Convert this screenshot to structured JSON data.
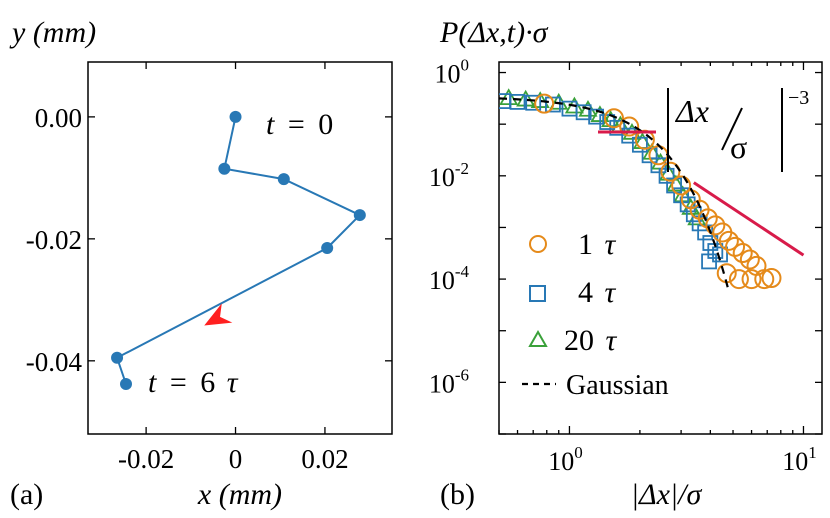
{
  "chart_data": [
    {
      "panel": "(a)",
      "type": "line",
      "ylabel": "y (mm)",
      "xlabel": "x (mm)",
      "xlim": [
        -0.033,
        0.035
      ],
      "ylim": [
        -0.052,
        0.009
      ],
      "xticks": [
        -0.02,
        0,
        0.02
      ],
      "xtick_labels": [
        "-0.02",
        "0",
        "0.02"
      ],
      "yticks": [
        0.0,
        -0.02,
        -0.04
      ],
      "ytick_labels": [
        "0.00",
        "-0.02",
        "-0.04"
      ],
      "series": [
        {
          "name": "trajectory",
          "color": "#2878b5",
          "points": [
            [
              0.0,
              0.0
            ],
            [
              -0.0025,
              -0.0085
            ],
            [
              0.0108,
              -0.0102
            ],
            [
              0.0278,
              -0.0161
            ],
            [
              0.0205,
              -0.0215
            ],
            [
              -0.0265,
              -0.0395
            ],
            [
              -0.0245,
              -0.0438
            ]
          ]
        }
      ],
      "arrow": {
        "from": [
          0.0015,
          -0.0308
        ],
        "to": [
          -0.007,
          -0.0342
        ],
        "color": "#ff2020"
      },
      "annotations": {
        "start_lhs": "t",
        "start_rhs": "0",
        "end_lhs": "t",
        "end_rhs": "6",
        "end_unit": "τ",
        "equals": "="
      }
    },
    {
      "panel": "(b)",
      "type": "scatter",
      "ylabel": "P(Δx,t)·σ",
      "xlabel": "|Δx|/σ",
      "xscale": "log",
      "yscale": "log",
      "xlim": [
        0.5,
        12
      ],
      "ylim": [
        1e-07,
        1.6
      ],
      "xticks": [
        1,
        10
      ],
      "yticks": [
        1,
        0.01,
        0.0001,
        1e-06
      ],
      "tick_labels": {
        "x1": {
          "base": "10",
          "exp": "0"
        },
        "x10": {
          "base": "10",
          "exp": "1"
        },
        "y0": {
          "base": "10",
          "exp": "0"
        },
        "y-2": {
          "base": "10",
          "exp": "-2"
        },
        "y-4": {
          "base": "10",
          "exp": "-4"
        },
        "y-6": {
          "base": "10",
          "exp": "-6"
        }
      },
      "series": [
        {
          "name": "1 τ",
          "label_num": "1",
          "marker": "circle",
          "color": "#e58a1a",
          "points": [
            [
              0.78,
              0.25
            ],
            [
              1.55,
              0.13
            ],
            [
              1.8,
              0.09
            ],
            [
              2.1,
              0.05
            ],
            [
              2.4,
              0.025
            ],
            [
              2.7,
              0.012
            ],
            [
              3.0,
              0.0065
            ],
            [
              3.3,
              0.0035
            ],
            [
              3.6,
              0.0022
            ],
            [
              3.9,
              0.0015
            ],
            [
              4.2,
              0.0011
            ],
            [
              4.5,
              0.0008
            ],
            [
              4.8,
              0.00055
            ],
            [
              5.1,
              0.00042
            ],
            [
              5.5,
              0.00032
            ],
            [
              5.9,
              0.00024
            ],
            [
              6.3,
              0.00018
            ],
            [
              4.7,
              0.00013
            ],
            [
              5.3,
              0.0001
            ],
            [
              6.0,
              0.0001
            ],
            [
              6.8,
              0.0001
            ],
            [
              7.3,
              0.000105
            ]
          ]
        },
        {
          "name": "4 τ",
          "label_num": "4",
          "marker": "square",
          "color": "#2878b5",
          "points": [
            [
              0.52,
              0.28
            ],
            [
              0.6,
              0.27
            ],
            [
              0.7,
              0.26
            ],
            [
              0.85,
              0.24
            ],
            [
              1.0,
              0.2
            ],
            [
              1.15,
              0.17
            ],
            [
              1.3,
              0.14
            ],
            [
              1.45,
              0.11
            ],
            [
              1.6,
              0.085
            ],
            [
              1.8,
              0.06
            ],
            [
              2.0,
              0.04
            ],
            [
              2.2,
              0.025
            ],
            [
              2.4,
              0.016
            ],
            [
              2.6,
              0.01
            ],
            [
              2.8,
              0.0065
            ],
            [
              3.0,
              0.0042
            ],
            [
              3.2,
              0.0028
            ],
            [
              3.4,
              0.0018
            ],
            [
              3.6,
              0.0012
            ],
            [
              3.8,
              0.0008
            ],
            [
              4.0,
              0.0005
            ],
            [
              4.2,
              0.00035
            ],
            [
              3.95,
              0.00022
            ],
            [
              4.4,
              0.0003
            ]
          ]
        },
        {
          "name": "20 τ",
          "label_num": "20",
          "marker": "triangle",
          "color": "#3aa13a",
          "points": [
            [
              0.55,
              0.32
            ],
            [
              0.65,
              0.3
            ],
            [
              0.75,
              0.28
            ],
            [
              0.9,
              0.26
            ],
            [
              1.05,
              0.22
            ],
            [
              1.2,
              0.19
            ],
            [
              1.35,
              0.15
            ],
            [
              1.5,
              0.12
            ],
            [
              1.65,
              0.095
            ],
            [
              1.85,
              0.068
            ],
            [
              2.05,
              0.045
            ],
            [
              2.25,
              0.028
            ],
            [
              2.45,
              0.018
            ],
            [
              2.65,
              0.011
            ],
            [
              2.85,
              0.0068
            ],
            [
              3.05,
              0.0042
            ],
            [
              3.3,
              0.0024
            ],
            [
              3.5,
              0.0015
            ]
          ]
        }
      ],
      "gaussian": {
        "name": "Gaussian",
        "sigma": 1.15,
        "x_range": [
          0.5,
          4.8
        ],
        "color": "#000000"
      },
      "power_law": {
        "exponent": -3,
        "x_range": [
          3.4,
          10
        ],
        "prefactor": 0.083,
        "color": "#d81b4a",
        "legend_text": "Δx",
        "legend_den": "σ",
        "legend_exp": "−3"
      }
    }
  ]
}
